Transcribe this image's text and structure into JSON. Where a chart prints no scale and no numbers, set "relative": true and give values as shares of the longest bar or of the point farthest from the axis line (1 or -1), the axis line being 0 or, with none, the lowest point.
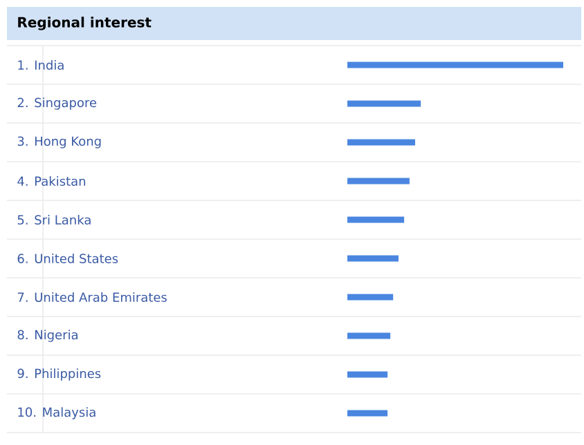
{
  "chart_data": {
    "type": "bar",
    "orientation": "horizontal",
    "relative": true,
    "title": "Regional interest",
    "categories": [
      "1. India",
      "2. Singapore",
      "3. Hong Kong",
      "4. Pakistan",
      "5. Sri Lanka",
      "6. United States",
      "7. United Arab Emirates",
      "8. Nigeria",
      "9. Philippines",
      "10. Malaysia"
    ],
    "values": [
      1,
      0.34,
      0.314,
      0.288,
      0.263,
      0.237,
      0.212,
      0.199,
      0.186,
      0.186
    ],
    "color": "#4a86e0"
  }
}
